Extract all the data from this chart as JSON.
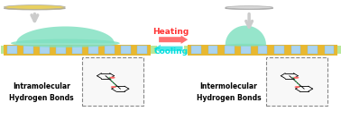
{
  "bg_color": "#ffffff",
  "heating_text": "Heating",
  "cooling_text": "Cooling",
  "heating_color": "#ff3333",
  "cooling_color": "#00dddd",
  "left_label_line1": "Intramolecular",
  "left_label_line2": "Hydrogen Bonds",
  "right_label_line1": "Intermolecular",
  "right_label_line2": "Hydrogen Bonds",
  "label_color": "#000000",
  "pillar_color_main": "#aad4f0",
  "pillar_color_gold": "#e8b830",
  "droplet_color": "#7fe0c0",
  "surface_color": "#c8e8b0"
}
